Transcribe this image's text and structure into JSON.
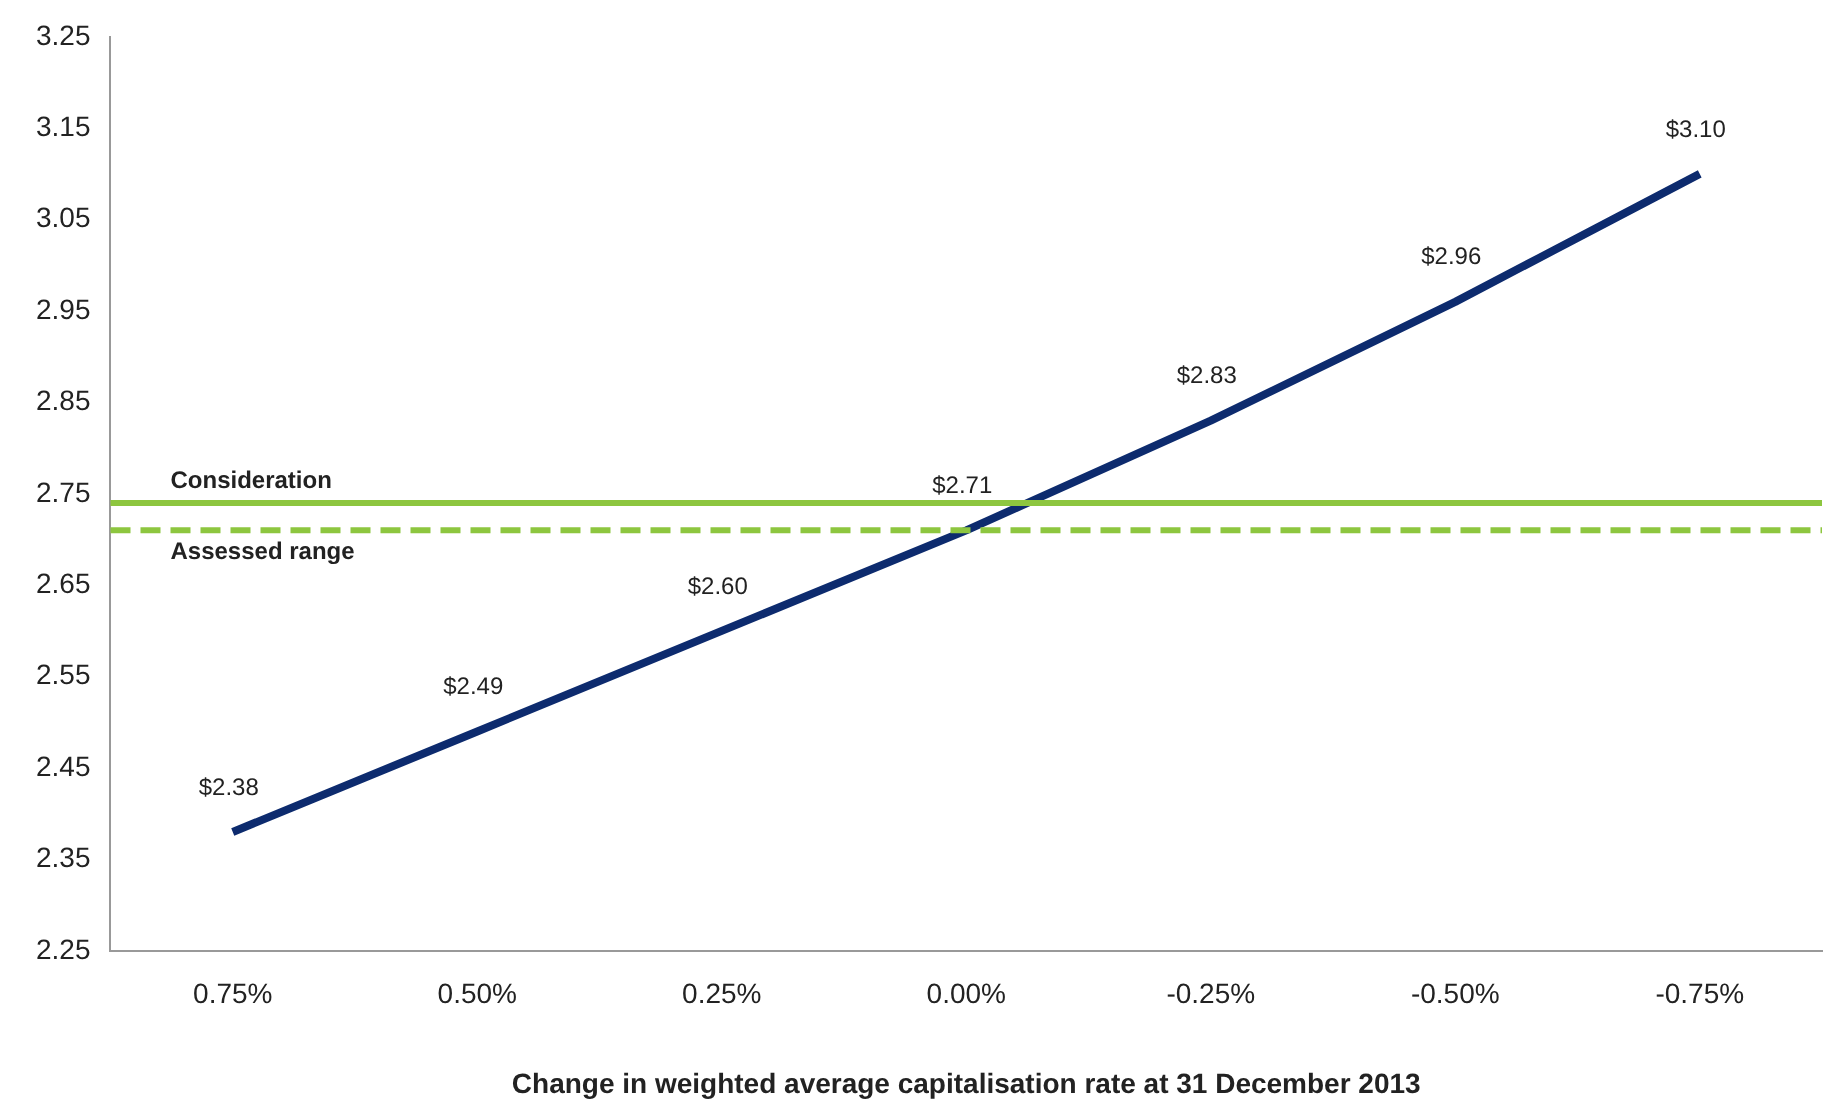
{
  "chart_data": {
    "type": "line",
    "xlabel": "Change in weighted average capitalisation rate at 31 December 2013",
    "categories": [
      "0.75%",
      "0.50%",
      "0.25%",
      "0.00%",
      "-0.25%",
      "-0.50%",
      "-0.75%"
    ],
    "series": [
      {
        "color": "#0d2b6e",
        "values": [
          2.38,
          2.49,
          2.6,
          2.71,
          2.83,
          2.96,
          3.1
        ],
        "value_labels": [
          "$2.38",
          "$2.49",
          "$2.60",
          "$2.71",
          "$2.83",
          "$2.96",
          "$3.10"
        ]
      }
    ],
    "ylim": [
      2.25,
      3.25
    ],
    "yticks": [
      2.25,
      2.35,
      2.45,
      2.55,
      2.65,
      2.75,
      2.85,
      2.95,
      3.05,
      3.15,
      3.25
    ],
    "ref_lines": [
      {
        "axis": "y",
        "value": 2.74,
        "label": "Consideration",
        "color": "#8dc63f",
        "line_style": "solid"
      },
      {
        "axis": "y",
        "value": 2.71,
        "label": "Assessed range",
        "color": "#8dc63f",
        "line_style": "dashed"
      }
    ],
    "grid": false,
    "legend": false,
    "marker": "none",
    "line_style": "solid"
  }
}
